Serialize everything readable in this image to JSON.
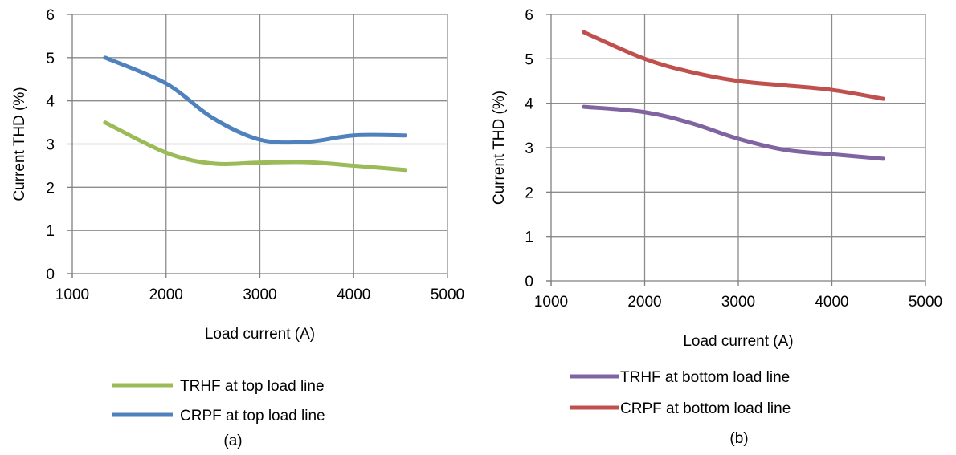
{
  "chart_data": [
    {
      "type": "line",
      "caption": "(a)",
      "xlabel": "Load current (A)",
      "ylabel": "Current THD (%)",
      "xlim": [
        1000,
        5000
      ],
      "ylim": [
        0,
        6
      ],
      "xticks": [
        1000,
        2000,
        3000,
        4000,
        5000
      ],
      "yticks": [
        0,
        1,
        2,
        3,
        4,
        5,
        6
      ],
      "grid": true,
      "smooth": true,
      "legend_position": "bottom",
      "series": [
        {
          "name": "TRHF at top load line",
          "color": "#9BBB59",
          "x": [
            1350,
            2000,
            2500,
            3000,
            3500,
            4000,
            4550
          ],
          "y": [
            3.5,
            2.8,
            2.55,
            2.57,
            2.58,
            2.5,
            2.4
          ]
        },
        {
          "name": "CRPF at top load line",
          "color": "#4F81BD",
          "x": [
            1350,
            2000,
            2500,
            3000,
            3500,
            4000,
            4550
          ],
          "y": [
            5.0,
            4.4,
            3.6,
            3.1,
            3.05,
            3.2,
            3.2
          ]
        }
      ]
    },
    {
      "type": "line",
      "caption": "(b)",
      "xlabel": "Load current (A)",
      "ylabel": "Current THD (%)",
      "xlim": [
        1000,
        5000
      ],
      "ylim": [
        0,
        6
      ],
      "xticks": [
        1000,
        2000,
        3000,
        4000,
        5000
      ],
      "yticks": [
        0,
        1,
        2,
        3,
        4,
        5,
        6
      ],
      "grid": true,
      "smooth": true,
      "legend_position": "bottom",
      "series": [
        {
          "name": "TRHF at bottom load line",
          "color": "#8064A2",
          "x": [
            1350,
            2000,
            2500,
            3000,
            3500,
            4000,
            4550
          ],
          "y": [
            3.92,
            3.8,
            3.55,
            3.2,
            2.95,
            2.85,
            2.75
          ]
        },
        {
          "name": "CRPF at bottom load line",
          "color": "#C0504D",
          "x": [
            1350,
            2000,
            2500,
            3000,
            3500,
            4000,
            4550
          ],
          "y": [
            5.6,
            5.0,
            4.7,
            4.5,
            4.4,
            4.3,
            4.1
          ]
        }
      ]
    }
  ]
}
